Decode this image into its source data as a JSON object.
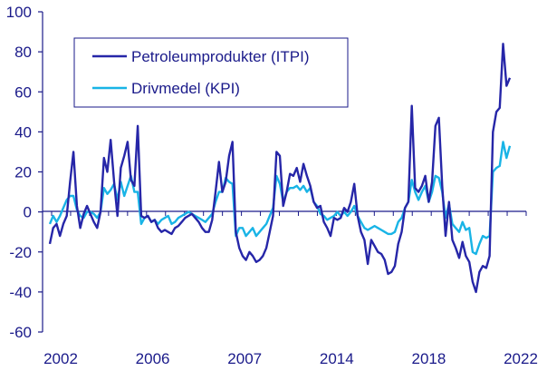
{
  "chart_data": {
    "type": "line",
    "ylim": [
      -60,
      100
    ],
    "yticks": [
      -60,
      -40,
      -20,
      0,
      20,
      40,
      60,
      80,
      100
    ],
    "x_tick_labels": [
      "2002",
      "2006",
      "2007",
      "2014",
      "2018",
      "2022"
    ],
    "grid": false,
    "legend_position": "top-left",
    "colors": {
      "axis": "#1a1a8a",
      "itpi": "#2626a8",
      "kpi": "#19b4e6"
    },
    "series": [
      {
        "name": "Petroleumprodukter (ITPI)",
        "values": [
          -16,
          -8,
          -6,
          -12,
          -6,
          -2,
          15,
          30,
          3,
          -8,
          -1,
          3,
          -1,
          -5,
          -8,
          0,
          27,
          20,
          36,
          15,
          -2,
          22,
          28,
          35,
          16,
          13,
          43,
          -2,
          -3,
          -2,
          -5,
          -4,
          -8,
          -10,
          -9,
          -10,
          -11,
          -8,
          -7,
          -5,
          -3,
          -2,
          -1,
          -3,
          -5,
          -8,
          -10,
          -10,
          -4,
          10,
          25,
          10,
          15,
          28,
          35,
          -10,
          -18,
          -22,
          -24,
          -20,
          -22,
          -25,
          -24,
          -22,
          -18,
          -10,
          -2,
          30,
          28,
          3,
          10,
          19,
          18,
          22,
          15,
          24,
          18,
          13,
          5,
          2,
          3,
          -5,
          -8,
          -12,
          -3,
          -4,
          -3,
          2,
          0,
          5,
          14,
          -2,
          -10,
          -14,
          -26,
          -14,
          -17,
          -20,
          -21,
          -24,
          -31,
          -30,
          -27,
          -16,
          -10,
          2,
          5,
          53,
          12,
          10,
          13,
          18,
          5,
          15,
          43,
          47,
          13,
          -12,
          5,
          -14,
          -18,
          -23,
          -15,
          -22,
          -25,
          -35,
          -40,
          -30,
          -27,
          -28,
          -22,
          40,
          50,
          52,
          84,
          63,
          67
        ],
        "comment": ""
      },
      {
        "name": "Drivmedel (KPI)",
        "values": [
          -6,
          -2,
          -5,
          -2,
          2,
          6,
          8,
          8,
          1,
          -2,
          -3,
          0,
          0,
          -1,
          -3,
          0,
          12,
          9,
          11,
          14,
          6,
          15,
          8,
          13,
          18,
          10,
          10,
          -6,
          -3,
          -2,
          -5,
          -4,
          -6,
          -4,
          -3,
          -2,
          -6,
          -5,
          -3,
          -2,
          -1,
          0,
          -1,
          -2,
          -3,
          -4,
          -5,
          -3,
          -1,
          5,
          10,
          10,
          17,
          15,
          14,
          -12,
          -8,
          -8,
          -12,
          -10,
          -8,
          -12,
          -10,
          -8,
          -6,
          -2,
          2,
          18,
          14,
          5,
          10,
          12,
          12,
          13,
          11,
          13,
          10,
          12,
          5,
          3,
          -1,
          -2,
          -4,
          -3,
          -2,
          0,
          -2,
          0,
          -2,
          0,
          3,
          -2,
          -5,
          -8,
          -9,
          -8,
          -7,
          -8,
          -9,
          -10,
          -11,
          -11,
          -10,
          -5,
          -3,
          2,
          5,
          16,
          10,
          6,
          10,
          13,
          5,
          10,
          18,
          17,
          10,
          -3,
          4,
          -6,
          -8,
          -10,
          -5,
          -9,
          -8,
          -20,
          -21,
          -16,
          -12,
          -13,
          -12,
          20,
          22,
          23,
          35,
          27,
          33
        ],
        "comment": ""
      }
    ]
  }
}
